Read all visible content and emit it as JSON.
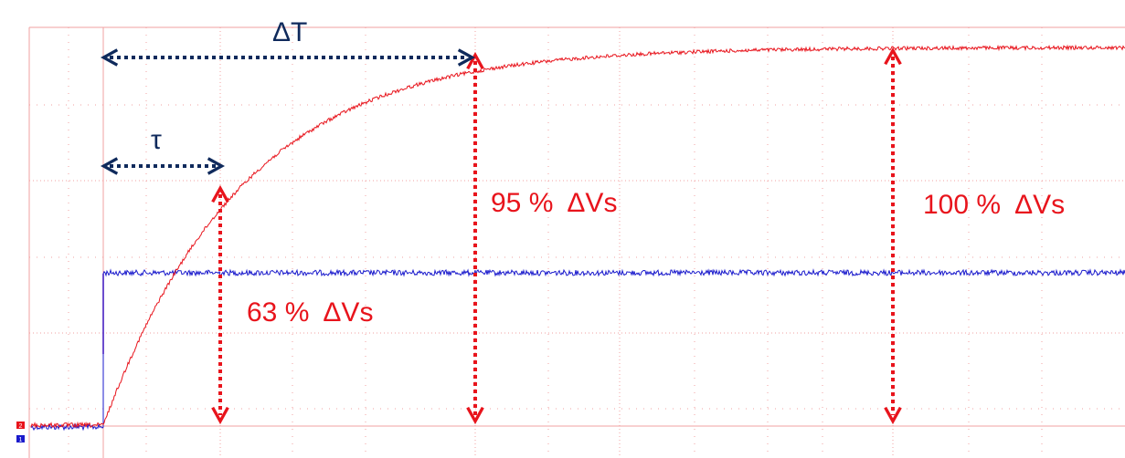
{
  "chart_data": {
    "type": "line",
    "title": "",
    "xlabel": "",
    "ylabel": "",
    "grid": true,
    "ref_markers": {
      "ch2": "2",
      "ch1": "1"
    },
    "series": [
      {
        "name": "",
        "kind": "step_input",
        "color": "#1a1acc"
      },
      {
        "name": "",
        "kind": "first_order_response",
        "color": "#e8141c"
      }
    ],
    "annotations": {
      "delta_t": "ΔT",
      "tau": "τ",
      "pct63": "63 %  ΔVs",
      "pct95": "95 %  ΔVs",
      "pct100": "100 %  ΔVs"
    },
    "colors": {
      "grid": "#f2a0a0",
      "annotation_red": "#e8141c",
      "annotation_navy": "#0f2a5c",
      "step_marker": "#7a00a0"
    }
  }
}
